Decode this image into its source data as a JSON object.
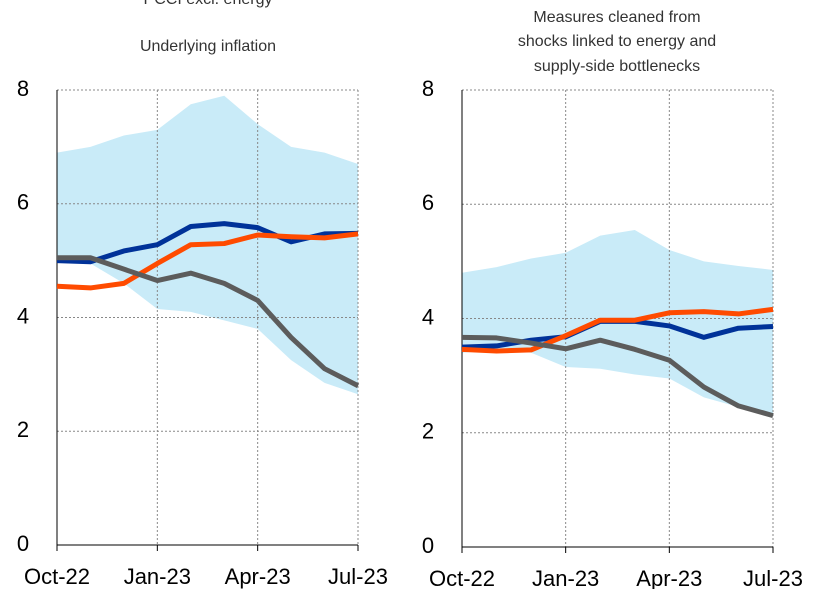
{
  "chart_data": [
    {
      "type": "line",
      "title_lines": [
        "PCCI excl. energy",
        "Underlying inflation"
      ],
      "categories": [
        "Oct-22",
        null,
        null,
        "Jan-23",
        null,
        null,
        "Apr-23",
        null,
        null,
        "Jul-23"
      ],
      "ylim": [
        0,
        8
      ],
      "yticks": [
        0,
        2,
        4,
        6,
        8
      ],
      "grid": true,
      "band": {
        "color": "#c9ebf8",
        "upper": [
          6.9,
          7.0,
          7.2,
          7.3,
          7.75,
          7.9,
          7.4,
          7.0,
          6.9,
          6.7
        ],
        "lower": [
          5.0,
          4.95,
          4.6,
          4.15,
          4.1,
          3.95,
          3.8,
          3.25,
          2.85,
          2.65
        ]
      },
      "series": [
        {
          "color": "#003299",
          "values": [
            5.0,
            4.98,
            5.17,
            5.28,
            5.6,
            5.65,
            5.58,
            5.33,
            5.47,
            5.48
          ]
        },
        {
          "color": "#ff4b00",
          "values": [
            4.55,
            4.52,
            4.6,
            4.95,
            5.28,
            5.3,
            5.45,
            5.42,
            5.4,
            5.47
          ]
        },
        {
          "color": "#5c5c5c",
          "values": [
            5.05,
            5.05,
            4.85,
            4.65,
            4.78,
            4.6,
            4.3,
            3.65,
            3.1,
            2.8
          ]
        }
      ]
    },
    {
      "type": "line",
      "title_lines": [
        "Measures cleaned from",
        "shocks linked to energy and",
        "supply-side bottlenecks"
      ],
      "categories": [
        "Oct-22",
        null,
        null,
        "Jan-23",
        null,
        null,
        "Apr-23",
        null,
        null,
        "Jul-23"
      ],
      "ylim": [
        0,
        8
      ],
      "yticks": [
        0,
        2,
        4,
        6,
        8
      ],
      "grid": true,
      "band": {
        "color": "#c9ebf8",
        "upper": [
          4.8,
          4.9,
          5.05,
          5.15,
          5.45,
          5.55,
          5.2,
          5.0,
          4.92,
          4.85
        ],
        "lower": [
          3.4,
          3.45,
          3.4,
          3.15,
          3.12,
          3.02,
          2.95,
          2.62,
          2.45,
          2.3
        ]
      },
      "series": [
        {
          "color": "#003299",
          "values": [
            3.5,
            3.52,
            3.62,
            3.68,
            3.95,
            3.95,
            3.87,
            3.67,
            3.83,
            3.86
          ]
        },
        {
          "color": "#ff4b00",
          "values": [
            3.46,
            3.43,
            3.45,
            3.7,
            3.97,
            3.97,
            4.1,
            4.12,
            4.08,
            4.16
          ]
        },
        {
          "color": "#5c5c5c",
          "values": [
            3.67,
            3.66,
            3.57,
            3.47,
            3.62,
            3.46,
            3.27,
            2.8,
            2.47,
            2.3
          ]
        }
      ]
    }
  ]
}
